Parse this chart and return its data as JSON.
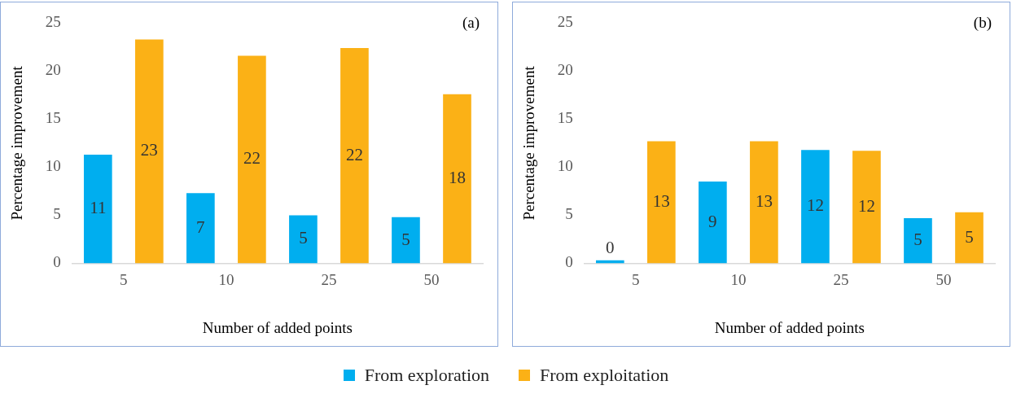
{
  "chart_data": [
    {
      "type": "bar",
      "xlabel": "Number of added points",
      "ylabel": "Percentage improvement",
      "categories": [
        "5",
        "10",
        "25",
        "50"
      ],
      "ylim": [
        0,
        25
      ],
      "yticks": [
        0,
        5,
        10,
        15,
        20,
        25
      ],
      "grid": false,
      "legend": "bottom",
      "annotations": [
        "(a)"
      ],
      "series": [
        {
          "name": "From exploration",
          "color": "#00aeef",
          "values": [
            11.3,
            7.3,
            5.0,
            4.8
          ],
          "value_labels": [
            "11",
            "7",
            "5",
            "5"
          ]
        },
        {
          "name": "From exploitation",
          "color": "#fbb116",
          "values": [
            23.3,
            21.6,
            22.4,
            17.6
          ],
          "value_labels": [
            "23",
            "22",
            "22",
            "18"
          ]
        }
      ]
    },
    {
      "type": "bar",
      "xlabel": "Number of added points",
      "ylabel": "Percentage improvement",
      "categories": [
        "5",
        "10",
        "25",
        "50"
      ],
      "ylim": [
        0,
        25
      ],
      "yticks": [
        0,
        5,
        10,
        15,
        20,
        25
      ],
      "grid": false,
      "legend": "bottom",
      "annotations": [
        "(b)"
      ],
      "series": [
        {
          "name": "From exploration",
          "color": "#00aeef",
          "values": [
            0.3,
            8.5,
            11.8,
            4.7
          ],
          "value_labels": [
            "0",
            "9",
            "12",
            "5"
          ]
        },
        {
          "name": "From exploitation",
          "color": "#fbb116",
          "values": [
            12.7,
            12.7,
            11.7,
            5.3
          ],
          "value_labels": [
            "13",
            "13",
            "12",
            "5"
          ]
        }
      ]
    }
  ]
}
